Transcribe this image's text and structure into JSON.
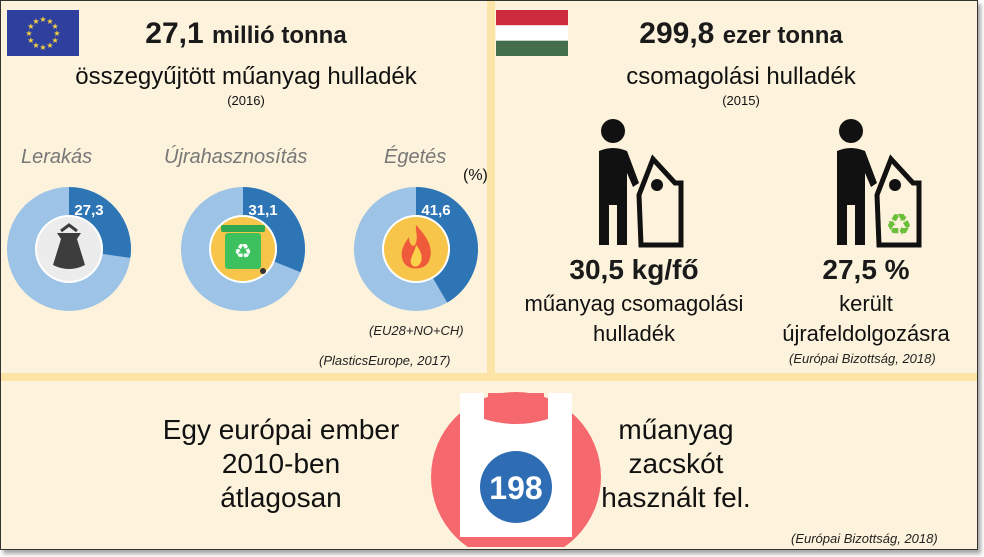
{
  "eu_panel": {
    "headline_number": "27,1",
    "headline_unit": "millió tonna",
    "subtitle": "összegyűjtött műanyag hulladék",
    "year": "(2016)",
    "percent_unit": "(%)",
    "scope_note": "(EU28+NO+CH)",
    "source": "(PlasticsEurope, 2017)"
  },
  "hu_panel": {
    "headline_number": "299,8",
    "headline_unit": "ezer tonna",
    "subtitle": "csomagolási hulladék",
    "year": "(2015)",
    "stat1": {
      "value": "30,5 kg/fő",
      "line1": "műanyag csomagolási",
      "line2": "hulladék"
    },
    "stat2": {
      "value": "27,5 %",
      "line1": "került",
      "line2": "újrafeldolgozásra"
    },
    "source": "(Európai Bizottság, 2018)"
  },
  "bottom_panel": {
    "left_line1": "Egy európai ember",
    "left_line2": "2010-ben",
    "left_line3": "átlagosan",
    "bag_count": "198",
    "right_line1": "műanyag",
    "right_line2": "zacskót",
    "right_line3": "használt fel.",
    "source": "(Európai Bizottság, 2018)"
  },
  "chart_data": {
    "type": "pie",
    "categories": [
      "Lerakás",
      "Újrahasznosítás",
      "Égetés"
    ],
    "values": [
      27.3,
      31.1,
      41.6
    ],
    "value_labels": [
      "27,3",
      "31,1",
      "41,6"
    ],
    "colors": {
      "share": "#2e75b6",
      "rest": "#9dc3e6"
    }
  }
}
